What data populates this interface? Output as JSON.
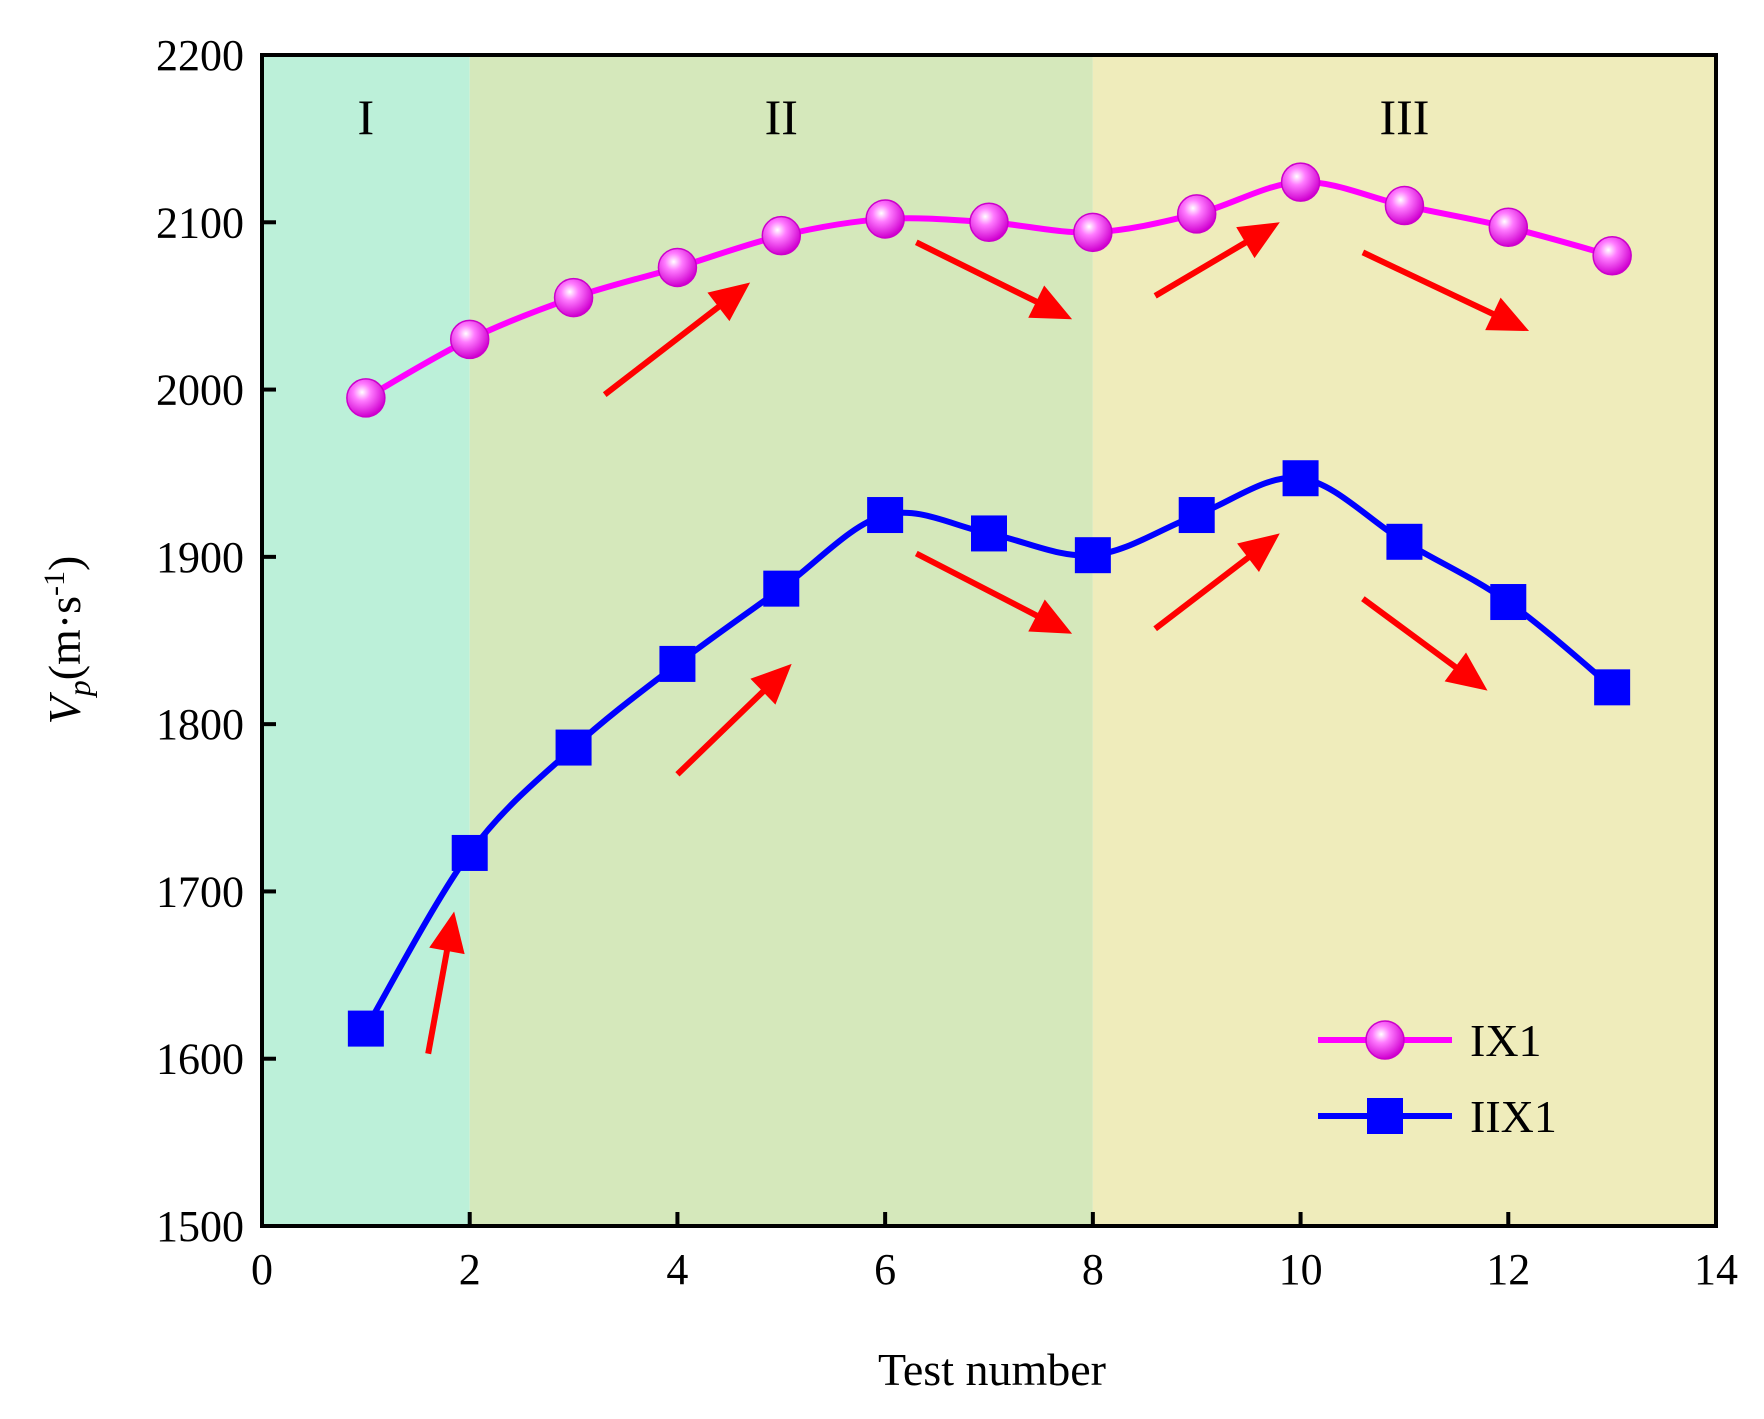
{
  "chart_data": {
    "type": "line",
    "title": "",
    "xlabel": "Test number",
    "ylabel": {
      "main": "V",
      "sub": "p",
      "unit_open": "(m·s",
      "unit_sup": "-1",
      "unit_close": ")"
    },
    "xlim": [
      0,
      14
    ],
    "ylim": [
      1500,
      2200
    ],
    "xticks": [
      0,
      2,
      4,
      6,
      8,
      10,
      12,
      14
    ],
    "yticks": [
      1500,
      1600,
      1700,
      1800,
      1900,
      2000,
      2100,
      2200
    ],
    "grid": false,
    "legend_position": "bottom-right",
    "regions": [
      {
        "label": "I",
        "x_start": 0,
        "x_end": 2,
        "color": "#bcf0d9"
      },
      {
        "label": "II",
        "x_start": 2,
        "x_end": 8,
        "color": "#d5e8bb"
      },
      {
        "label": "III",
        "x_start": 8,
        "x_end": 14,
        "color": "#efecbb"
      }
    ],
    "x": [
      1,
      2,
      3,
      4,
      5,
      6,
      7,
      8,
      9,
      10,
      11,
      12,
      13
    ],
    "series": [
      {
        "name": "IX1",
        "color": "#ff00ff",
        "marker": "circle",
        "values": [
          1995,
          2030,
          2055,
          2073,
          2092,
          2102,
          2100,
          2094,
          2105,
          2124,
          2110,
          2097,
          2080
        ]
      },
      {
        "name": "IIX1",
        "color": "#0000ff",
        "marker": "square",
        "values": [
          1618,
          1723,
          1786,
          1836,
          1881,
          1925,
          1914,
          1901,
          1925,
          1947,
          1909,
          1873,
          1822
        ]
      }
    ],
    "trend_arrows": [
      {
        "from": [
          3.3,
          1997
        ],
        "to": [
          4.7,
          2064
        ],
        "color": "#ff0000"
      },
      {
        "from": [
          6.3,
          2088
        ],
        "to": [
          7.8,
          2042
        ],
        "color": "#ff0000"
      },
      {
        "from": [
          8.6,
          2056
        ],
        "to": [
          9.8,
          2100
        ],
        "color": "#ff0000"
      },
      {
        "from": [
          10.6,
          2082
        ],
        "to": [
          12.2,
          2035
        ],
        "color": "#ff0000"
      },
      {
        "from": [
          1.6,
          1603
        ],
        "to": [
          1.85,
          1688
        ],
        "color": "#ff0000"
      },
      {
        "from": [
          4.0,
          1770
        ],
        "to": [
          5.1,
          1836
        ],
        "color": "#ff0000"
      },
      {
        "from": [
          6.3,
          1902
        ],
        "to": [
          7.8,
          1854
        ],
        "color": "#ff0000"
      },
      {
        "from": [
          8.6,
          1857
        ],
        "to": [
          9.8,
          1914
        ],
        "color": "#ff0000"
      },
      {
        "from": [
          10.6,
          1875
        ],
        "to": [
          11.8,
          1820
        ],
        "color": "#ff0000"
      }
    ]
  }
}
